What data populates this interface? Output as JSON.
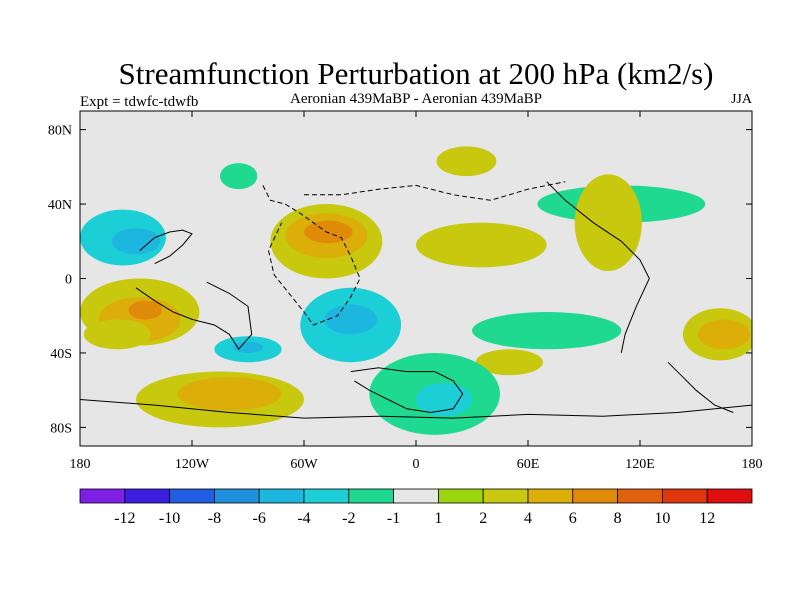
{
  "chart_data": {
    "type": "heatmap",
    "title": "Streamfunction Perturbation at 200 hPa (km2/s)",
    "left_subtitle": "Expt = tdwfc-tdwfb",
    "center_subtitle": "Aeronian 439MaBP - Aeronian 439MaBP",
    "right_subtitle": "JJA",
    "x_ticks": [
      {
        "value": -180,
        "label": "180"
      },
      {
        "value": -120,
        "label": "120W"
      },
      {
        "value": -60,
        "label": "60W"
      },
      {
        "value": 0,
        "label": "0"
      },
      {
        "value": 60,
        "label": "60E"
      },
      {
        "value": 120,
        "label": "120E"
      },
      {
        "value": 180,
        "label": "180"
      }
    ],
    "y_ticks": [
      {
        "value": 80,
        "label": "80N"
      },
      {
        "value": 40,
        "label": "40N"
      },
      {
        "value": 0,
        "label": "0"
      },
      {
        "value": -40,
        "label": "40S"
      },
      {
        "value": -80,
        "label": "80S"
      }
    ],
    "x_range": [
      -180,
      180
    ],
    "y_range": [
      -90,
      90
    ],
    "colorbar": {
      "colors": [
        "#7f1fe6",
        "#3b1ee0",
        "#1f5fe0",
        "#1e90e0",
        "#1cb6de",
        "#1ccfd6",
        "#1ed98f",
        "#e6e6e6",
        "#9ad60f",
        "#c8c80f",
        "#dcae0a",
        "#e08a0a",
        "#e0620c",
        "#e0360e",
        "#e00f0f"
      ],
      "labels": [
        "-12",
        "-10",
        "-8",
        "-6",
        "-4",
        "-2",
        "-1",
        "1",
        "2",
        "4",
        "6",
        "8",
        "10",
        "12"
      ]
    },
    "regions": [
      {
        "lon": -157,
        "lat": 22,
        "rx": 23,
        "ry": 15,
        "level": -2
      },
      {
        "lon": -150,
        "lat": 20,
        "rx": 13,
        "ry": 7,
        "level": -4
      },
      {
        "lon": -95,
        "lat": 55,
        "rx": 10,
        "ry": 7,
        "level": -1
      },
      {
        "lon": -48,
        "lat": 20,
        "rx": 30,
        "ry": 20,
        "level": 2
      },
      {
        "lon": -48,
        "lat": 23,
        "rx": 22,
        "ry": 12,
        "level": 4
      },
      {
        "lon": -47,
        "lat": 25,
        "rx": 13,
        "ry": 6,
        "level": 6
      },
      {
        "lon": 27,
        "lat": 63,
        "rx": 16,
        "ry": 8,
        "level": 2
      },
      {
        "lon": 35,
        "lat": 18,
        "rx": 35,
        "ry": 12,
        "level": 2
      },
      {
        "lon": 110,
        "lat": 40,
        "rx": 45,
        "ry": 10,
        "level": -1
      },
      {
        "lon": 103,
        "lat": 30,
        "rx": 18,
        "ry": 26,
        "level": 2
      },
      {
        "lon": -148,
        "lat": -18,
        "rx": 32,
        "ry": 18,
        "level": 2
      },
      {
        "lon": -148,
        "lat": -22,
        "rx": 22,
        "ry": 12,
        "level": 4
      },
      {
        "lon": -145,
        "lat": -17,
        "rx": 9,
        "ry": 5,
        "level": 6
      },
      {
        "lon": -160,
        "lat": -30,
        "rx": 18,
        "ry": 8,
        "level": 2
      },
      {
        "lon": -35,
        "lat": -25,
        "rx": 27,
        "ry": 20,
        "level": -2
      },
      {
        "lon": -35,
        "lat": -22,
        "rx": 14,
        "ry": 8,
        "level": -4
      },
      {
        "lon": -90,
        "lat": -38,
        "rx": 18,
        "ry": 7,
        "level": -2
      },
      {
        "lon": -90,
        "lat": -37,
        "rx": 8,
        "ry": 3,
        "level": -4
      },
      {
        "lon": 70,
        "lat": -28,
        "rx": 40,
        "ry": 10,
        "level": -1
      },
      {
        "lon": 50,
        "lat": -45,
        "rx": 18,
        "ry": 7,
        "level": 2
      },
      {
        "lon": 163,
        "lat": -30,
        "rx": 20,
        "ry": 14,
        "level": 2
      },
      {
        "lon": 165,
        "lat": -30,
        "rx": 14,
        "ry": 8,
        "level": 4
      },
      {
        "lon": -105,
        "lat": -65,
        "rx": 45,
        "ry": 15,
        "level": 2
      },
      {
        "lon": -100,
        "lat": -62,
        "rx": 28,
        "ry": 9,
        "level": 4
      },
      {
        "lon": 10,
        "lat": -62,
        "rx": 35,
        "ry": 22,
        "level": -1
      },
      {
        "lon": 15,
        "lat": -65,
        "rx": 15,
        "ry": 9,
        "level": -2
      }
    ],
    "coastlines": [
      [
        [
          -82,
          50
        ],
        [
          -78,
          42
        ],
        [
          -70,
          40
        ],
        [
          -62,
          35
        ],
        [
          -55,
          30
        ],
        [
          -48,
          25
        ],
        [
          -40,
          22
        ],
        [
          -35,
          12
        ],
        [
          -30,
          0
        ],
        [
          -35,
          -10
        ],
        [
          -42,
          -20
        ],
        [
          -55,
          -25
        ],
        [
          -60,
          -18
        ],
        [
          -68,
          -8
        ],
        [
          -76,
          2
        ],
        [
          -79,
          15
        ],
        [
          -72,
          30
        ]
      ],
      [
        [
          -150,
          -5
        ],
        [
          -140,
          -12
        ],
        [
          -130,
          -18
        ],
        [
          -120,
          -22
        ],
        [
          -108,
          -25
        ],
        [
          -100,
          -30
        ],
        [
          -95,
          -38
        ],
        [
          -88,
          -30
        ],
        [
          -90,
          -15
        ],
        [
          -100,
          -8
        ],
        [
          -112,
          -2
        ]
      ],
      [
        [
          -148,
          15
        ],
        [
          -140,
          22
        ],
        [
          -132,
          25
        ],
        [
          -125,
          26
        ],
        [
          -120,
          24
        ],
        [
          -125,
          18
        ],
        [
          -132,
          12
        ],
        [
          -140,
          8
        ]
      ],
      [
        [
          -35,
          -50
        ],
        [
          -20,
          -48
        ],
        [
          -5,
          -50
        ],
        [
          10,
          -50
        ],
        [
          20,
          -55
        ],
        [
          25,
          -62
        ],
        [
          20,
          -70
        ],
        [
          8,
          -72
        ],
        [
          -5,
          -70
        ],
        [
          -15,
          -65
        ],
        [
          -25,
          -60
        ],
        [
          -33,
          -55
        ]
      ],
      [
        [
          70,
          52
        ],
        [
          80,
          42
        ],
        [
          95,
          30
        ],
        [
          110,
          20
        ],
        [
          120,
          10
        ],
        [
          125,
          0
        ],
        [
          118,
          -15
        ],
        [
          112,
          -30
        ],
        [
          110,
          -40
        ]
      ],
      [
        [
          -60,
          45
        ],
        [
          -40,
          45
        ],
        [
          -20,
          48
        ],
        [
          0,
          50
        ],
        [
          20,
          45
        ],
        [
          40,
          42
        ],
        [
          60,
          48
        ],
        [
          80,
          52
        ]
      ],
      [
        [
          -180,
          -65
        ],
        [
          -140,
          -68
        ],
        [
          -100,
          -72
        ],
        [
          -60,
          -75
        ],
        [
          -20,
          -74
        ],
        [
          20,
          -75
        ],
        [
          60,
          -73
        ],
        [
          100,
          -74
        ],
        [
          140,
          -72
        ],
        [
          180,
          -68
        ]
      ],
      [
        [
          135,
          -45
        ],
        [
          142,
          -52
        ],
        [
          150,
          -60
        ],
        [
          160,
          -68
        ],
        [
          170,
          -72
        ]
      ]
    ]
  }
}
